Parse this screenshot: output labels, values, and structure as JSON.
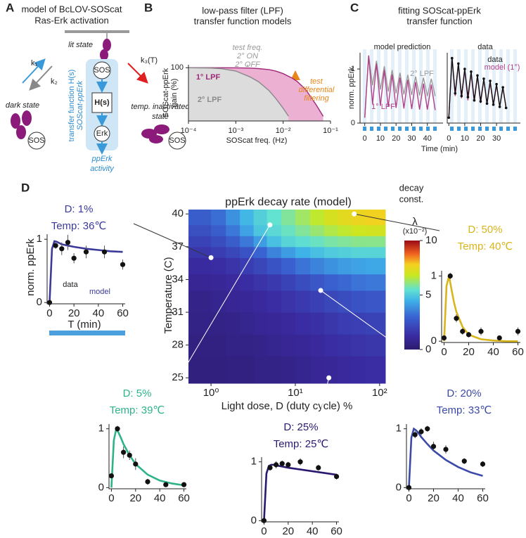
{
  "panel_a": {
    "label": "A",
    "title": [
      "model of BcLOV-SOScat",
      "Ras-Erk activation"
    ],
    "lit_state": "lit state",
    "dark_state": "dark state",
    "k1": "k₁",
    "k2": "k₂",
    "k3": "k₃(T)",
    "inactivated": [
      "temp. inactivated",
      "state"
    ],
    "sos": [
      "SOS",
      "SOS",
      "SOS"
    ],
    "hs": "H(s)",
    "erk": "Erk",
    "transfer": [
      "transfer function H(s)",
      "SOScat-ppErk"
    ],
    "output": [
      "ppErk",
      "activity"
    ]
  },
  "chart_data": [
    {
      "type": "line",
      "panel_label": "B",
      "title": "low-pass filter (LPF)",
      "subtitle": "transfer function models",
      "xlabel": "SOScat freq. (Hz)",
      "ylabel": [
        "SOScat-ppErk",
        "gain (%)"
      ],
      "xlog": true,
      "ylog": true,
      "xlim": [
        0.0001,
        0.1
      ],
      "ylim": [
        1,
        130
      ],
      "xticks": [
        {
          "value": 0.0001,
          "label": "10⁻⁴"
        },
        {
          "value": 0.001,
          "label": "10⁻³"
        },
        {
          "value": 0.01,
          "label": "10⁻²"
        },
        {
          "value": 0.1,
          "label": "10⁻¹"
        }
      ],
      "yticks": [
        100
      ],
      "annotations": [
        "test freq.",
        "2° ON",
        "2° OFF",
        "test",
        "differential",
        "filtering"
      ],
      "series": [
        {
          "name": "1° LPF",
          "color": "#a0287a",
          "fill": "#ebb0d2",
          "x": [
            0.0001,
            0.0003,
            0.001,
            0.002,
            0.003,
            0.005,
            0.007,
            0.01,
            0.015,
            0.02,
            0.03,
            0.05,
            0.07
          ],
          "values": [
            100,
            100,
            99,
            97,
            93,
            85,
            75,
            60,
            42,
            30,
            15,
            4,
            1.5
          ]
        },
        {
          "name": "2° LPF",
          "color": "#8a8a8a",
          "fill": "#dcdcdc",
          "x": [
            0.0001,
            0.0003,
            0.0005,
            0.001,
            0.002,
            0.003,
            0.005,
            0.007,
            0.01,
            0.013
          ],
          "values": [
            100,
            97,
            92,
            75,
            45,
            30,
            14,
            7,
            3,
            1.5
          ]
        }
      ]
    },
    {
      "type": "line",
      "panel_label": "C",
      "title": "fitting SOScat-ppErk",
      "subtitle": "transfer function",
      "heading": "model prediction",
      "xlabel": "Time (min)",
      "ylabel": "norm. ppErk",
      "xlim": [
        -3,
        50
      ],
      "ylim": [
        0,
        1.3
      ],
      "xticks": [
        0,
        10,
        20,
        30,
        40
      ],
      "yticks": [
        0,
        1
      ],
      "x": [
        0,
        2.5,
        5,
        7.5,
        10,
        12.5,
        15,
        17.5,
        20,
        22.5,
        25,
        27.5,
        30,
        32.5,
        35,
        37.5,
        40,
        42.5,
        45
      ],
      "series": [
        {
          "name": "2° LPF",
          "color": "#9a9a9a",
          "values": [
            0.1,
            1.25,
            0.7,
            1.15,
            0.62,
            1.05,
            0.58,
            0.98,
            0.55,
            0.93,
            0.53,
            0.89,
            0.52,
            0.86,
            0.51,
            0.84,
            0.5,
            0.82,
            0.5
          ]
        },
        {
          "name": "1° LPF",
          "color": "#b0408a",
          "values": [
            0.1,
            1.25,
            0.35,
            1.1,
            0.32,
            0.98,
            0.3,
            0.9,
            0.28,
            0.84,
            0.27,
            0.8,
            0.26,
            0.76,
            0.25,
            0.73,
            0.25,
            0.71,
            0.24
          ]
        }
      ]
    },
    {
      "type": "line",
      "heading": "data",
      "xlim": [
        -1,
        45
      ],
      "ylim": [
        0,
        1.3
      ],
      "xticks": [
        0,
        10,
        20,
        30
      ],
      "x": [
        0,
        2,
        4,
        6,
        8,
        10,
        12,
        14,
        16,
        18,
        20,
        22,
        24,
        26,
        28,
        30,
        32,
        34,
        36
      ],
      "series": [
        {
          "name": "model (1°)",
          "color": "#b0408a",
          "values": [
            0.1,
            1.22,
            0.5,
            1.08,
            0.46,
            0.98,
            0.42,
            0.92,
            0.4,
            0.86,
            0.37,
            0.8,
            0.35,
            0.75,
            0.33,
            0.7,
            0.3,
            0.66,
            0.29
          ]
        },
        {
          "name": "data",
          "color": "#111111",
          "markers": true,
          "values": [
            0.1,
            1.2,
            0.55,
            1.1,
            0.5,
            1.0,
            0.48,
            0.95,
            0.42,
            0.88,
            0.4,
            0.82,
            0.36,
            0.78,
            0.34,
            0.72,
            0.3,
            0.66,
            0.28
          ]
        }
      ]
    },
    {
      "type": "heatmap",
      "panel_label": "D",
      "title": "ppErk decay rate (model)",
      "xlabel": "Light dose, D (duty cycle) %",
      "ylabel": "Temperature (C)",
      "xlog": true,
      "xlim": [
        0.54,
        117
      ],
      "ylim": [
        24.5,
        40.4
      ],
      "xticks": [
        {
          "value": 1,
          "label": "10⁰"
        },
        {
          "value": 10,
          "label": "10¹"
        },
        {
          "value": 100,
          "label": "10²"
        }
      ],
      "yticks": [
        25,
        28,
        31,
        34,
        37,
        40
      ],
      "xbins": [
        0.54,
        1,
        1.5,
        2.2,
        3.2,
        4.6,
        6.8,
        10,
        15,
        22,
        32,
        46,
        68,
        117
      ],
      "ybins": [
        24.5,
        27,
        29,
        31,
        33,
        34.5,
        36,
        37,
        38,
        39,
        40.4
      ],
      "values": [
        [
          0.4,
          0.4,
          0.5,
          0.5,
          0.6,
          0.6,
          0.7,
          0.8,
          0.9,
          1.0,
          1.1,
          1.2,
          1.3
        ],
        [
          0.5,
          0.5,
          0.6,
          0.6,
          0.7,
          0.8,
          0.9,
          1.0,
          1.1,
          1.3,
          1.4,
          1.5,
          1.6
        ],
        [
          0.6,
          0.6,
          0.7,
          0.8,
          0.9,
          1.0,
          1.1,
          1.3,
          1.4,
          1.6,
          1.8,
          1.9,
          2.0
        ],
        [
          0.7,
          0.8,
          0.9,
          1.0,
          1.1,
          1.3,
          1.5,
          1.7,
          1.9,
          2.1,
          2.3,
          2.5,
          2.6
        ],
        [
          0.9,
          1.0,
          1.1,
          1.3,
          1.5,
          1.7,
          2.0,
          2.3,
          2.6,
          2.9,
          3.1,
          3.3,
          3.4
        ],
        [
          1.2,
          1.3,
          1.5,
          1.8,
          2.1,
          2.5,
          2.9,
          3.3,
          3.6,
          3.9,
          4.1,
          4.2,
          4.3
        ],
        [
          1.6,
          1.8,
          2.1,
          2.5,
          3.0,
          3.6,
          4.1,
          4.5,
          4.8,
          5.0,
          5.1,
          5.2,
          5.2
        ],
        [
          2.0,
          2.3,
          2.8,
          3.4,
          4.1,
          4.8,
          5.2,
          5.4,
          5.6,
          5.8,
          5.9,
          6.0,
          6.0
        ],
        [
          2.4,
          2.8,
          3.4,
          4.2,
          4.9,
          5.3,
          5.6,
          5.9,
          6.2,
          6.5,
          6.7,
          6.9,
          7.0
        ],
        [
          2.8,
          3.2,
          3.9,
          4.6,
          5.1,
          5.5,
          5.9,
          6.3,
          6.7,
          7.1,
          7.4,
          7.6,
          7.7
        ]
      ],
      "colorscale": [
        [
          0,
          "#2c1b6b"
        ],
        [
          0.12,
          "#3a2aa0"
        ],
        [
          0.3,
          "#3a63d2"
        ],
        [
          0.45,
          "#3fb2e8"
        ],
        [
          0.55,
          "#62e2d0"
        ],
        [
          0.68,
          "#c8e820"
        ],
        [
          0.78,
          "#f5d020"
        ],
        [
          0.88,
          "#f06020"
        ],
        [
          1,
          "#9a0a14"
        ]
      ],
      "colorbar": {
        "title": [
          "decay",
          "const."
        ],
        "symbol": "λ",
        "unit": "(x10⁻²)",
        "lim": [
          0,
          10
        ],
        "ticks": [
          0,
          5,
          10
        ]
      },
      "points": {
        "x": [
          1,
          5,
          50,
          20,
          25
        ],
        "y": [
          36,
          39,
          40,
          33,
          25
        ]
      }
    },
    {
      "type": "line",
      "title": "D: 1%",
      "subtitle": "Temp: 36℃",
      "xlabel": "T (min)",
      "ylabel": "norm. ppErk",
      "xlim": [
        -2,
        62
      ],
      "ylim": [
        -0.02,
        1.08
      ],
      "xticks": [
        0,
        20,
        40,
        60
      ],
      "yticks": [
        0,
        1
      ],
      "series": [
        {
          "name": "model",
          "color": "#3b3a9a",
          "x": [
            0,
            2,
            4,
            6,
            8,
            10,
            15,
            20,
            30,
            40,
            50,
            60
          ],
          "values": [
            0,
            0.85,
            0.97,
            0.96,
            0.94,
            0.92,
            0.9,
            0.88,
            0.85,
            0.83,
            0.81,
            0.8
          ]
        },
        {
          "name": "data",
          "type": "scatter",
          "color": "#111111",
          "x": [
            0,
            5,
            10,
            15,
            20,
            30,
            45,
            60
          ],
          "values": [
            0,
            0.9,
            0.85,
            0.95,
            0.7,
            0.8,
            0.8,
            0.6
          ],
          "errors": [
            0,
            0.05,
            0.1,
            0.12,
            0.08,
            0.1,
            0.1,
            0.08
          ]
        }
      ]
    },
    {
      "type": "line",
      "title": "D: 5%",
      "subtitle": "Temp: 39℃",
      "xlim": [
        -2,
        62
      ],
      "ylim": [
        -0.02,
        1.08
      ],
      "xticks": [
        0,
        20,
        40,
        60
      ],
      "yticks": [
        0,
        1
      ],
      "series": [
        {
          "color": "#2db38a",
          "x": [
            0,
            2,
            4,
            6,
            8,
            10,
            15,
            20,
            30,
            40,
            50,
            60
          ],
          "values": [
            0,
            0.8,
            1.0,
            0.93,
            0.84,
            0.74,
            0.55,
            0.4,
            0.22,
            0.12,
            0.07,
            0.04
          ]
        },
        {
          "type": "scatter",
          "color": "#111111",
          "x": [
            0,
            5,
            10,
            15,
            20,
            30,
            45,
            60
          ],
          "values": [
            0.2,
            1.0,
            0.6,
            0.55,
            0.4,
            0.1,
            0.05,
            0.05
          ],
          "errors": [
            0,
            0.05,
            0.1,
            0.08,
            0.1,
            0.05,
            0.03,
            0.03
          ]
        }
      ]
    },
    {
      "type": "line",
      "title": "D: 50%",
      "subtitle": "Temp: 40℃",
      "xlim": [
        -2,
        62
      ],
      "ylim": [
        -0.02,
        1.08
      ],
      "xticks": [
        0,
        20,
        40,
        60
      ],
      "yticks": [
        0,
        1
      ],
      "series": [
        {
          "color": "#d9b51c",
          "x": [
            0,
            2,
            4,
            6,
            8,
            10,
            15,
            20,
            30,
            40,
            50,
            60
          ],
          "values": [
            0,
            0.85,
            1.0,
            0.8,
            0.6,
            0.45,
            0.22,
            0.1,
            0.03,
            0.01,
            0,
            0
          ]
        },
        {
          "type": "scatter",
          "color": "#111111",
          "x": [
            0,
            5,
            10,
            15,
            20,
            30,
            45,
            60
          ],
          "values": [
            0.05,
            1.0,
            0.35,
            0.15,
            0.1,
            0.15,
            0.05,
            0.15
          ],
          "errors": [
            0,
            0.05,
            0.06,
            0.05,
            0.04,
            0.06,
            0.03,
            0.06
          ]
        }
      ]
    },
    {
      "type": "line",
      "title": "D: 25%",
      "subtitle": "Temp: 25℃",
      "xlim": [
        -2,
        62
      ],
      "ylim": [
        -0.02,
        1.08
      ],
      "xticks": [
        0,
        20,
        40,
        60
      ],
      "yticks": [
        0,
        1
      ],
      "series": [
        {
          "color": "#2b1870",
          "x": [
            0,
            2,
            4,
            6,
            8,
            10,
            15,
            20,
            30,
            40,
            50,
            60
          ],
          "values": [
            0,
            0.8,
            0.93,
            0.95,
            0.95,
            0.94,
            0.92,
            0.9,
            0.87,
            0.84,
            0.81,
            0.78
          ]
        },
        {
          "type": "scatter",
          "color": "#111111",
          "x": [
            0,
            5,
            10,
            15,
            20,
            30,
            45,
            60
          ],
          "values": [
            0,
            0.9,
            0.95,
            0.97,
            0.95,
            1.0,
            0.9,
            0.75
          ],
          "errors": [
            0,
            0.05,
            0.06,
            0.05,
            0.05,
            0.06,
            0.05,
            0.05
          ]
        }
      ]
    },
    {
      "type": "line",
      "title": "D: 20%",
      "subtitle": "Temp: 33℃",
      "xlim": [
        -2,
        62
      ],
      "ylim": [
        -0.02,
        1.08
      ],
      "xticks": [
        0,
        20,
        40,
        60
      ],
      "yticks": [
        0,
        1
      ],
      "series": [
        {
          "color": "#3b4aa8",
          "x": [
            0,
            2,
            4,
            6,
            8,
            10,
            15,
            20,
            30,
            40,
            50,
            60
          ],
          "values": [
            0,
            0.85,
            1.0,
            0.97,
            0.92,
            0.86,
            0.74,
            0.63,
            0.47,
            0.35,
            0.26,
            0.2
          ]
        },
        {
          "type": "scatter",
          "color": "#111111",
          "x": [
            0,
            5,
            10,
            15,
            20,
            30,
            45,
            60
          ],
          "values": [
            0,
            0.9,
            0.95,
            1.0,
            0.7,
            0.65,
            0.45,
            0.4
          ],
          "errors": [
            0,
            0.06,
            0.06,
            0.05,
            0.08,
            0.07,
            0.05,
            0.05
          ]
        }
      ]
    }
  ]
}
